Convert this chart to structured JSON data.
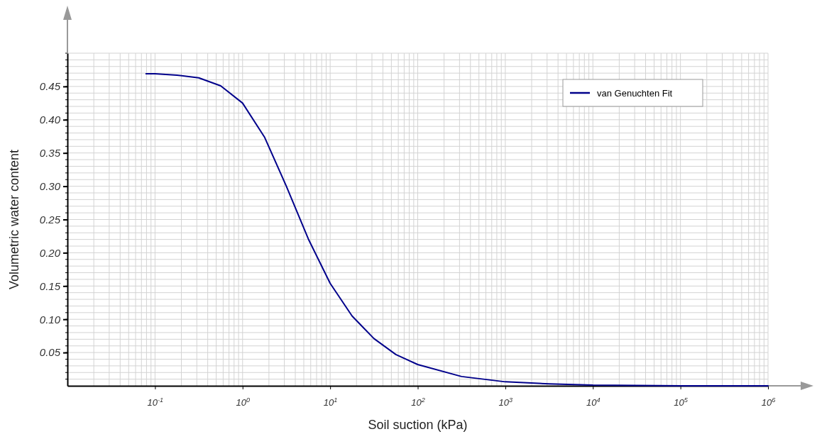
{
  "chart_data": {
    "type": "line",
    "xlabel": "Soil suction (kPa)",
    "ylabel": "Volumetric water content",
    "log": "x",
    "xlim": [
      0.01,
      1000000
    ],
    "ylim": [
      0,
      0.5
    ],
    "xticks": [
      {
        "value": 0.1,
        "label": "10$^{-1}$"
      },
      {
        "value": 1,
        "label": "10$^{0}$"
      },
      {
        "value": 10,
        "label": "10$^{1}$"
      },
      {
        "value": 100,
        "label": "10$^{2}$"
      },
      {
        "value": 1000,
        "label": "10$^{3}$"
      },
      {
        "value": 10000,
        "label": "10$^{4}$"
      },
      {
        "value": 100000,
        "label": "10$^{5}$"
      },
      {
        "value": 1000000,
        "label": "10$^{6}$"
      }
    ],
    "yticks": [
      {
        "value": 0.05,
        "label": "0.05"
      },
      {
        "value": 0.1,
        "label": "0.10"
      },
      {
        "value": 0.15,
        "label": "0.15"
      },
      {
        "value": 0.2,
        "label": "0.20"
      },
      {
        "value": 0.25,
        "label": "0.25"
      },
      {
        "value": 0.3,
        "label": "0.30"
      },
      {
        "value": 0.35,
        "label": "0.35"
      },
      {
        "value": 0.4,
        "label": "0.40"
      },
      {
        "value": 0.45,
        "label": "0.45"
      }
    ],
    "grid": true,
    "legend": "top right",
    "marker": "none",
    "line_style": "solid",
    "series": [
      {
        "name": "van Genuchten Fit",
        "color": "#00008b",
        "x": [
          0.079,
          0.1,
          0.178,
          0.316,
          0.562,
          1,
          1.778,
          3.162,
          5.623,
          10,
          17.78,
          31.62,
          56.23,
          100,
          316.2,
          1000,
          3162,
          10000,
          100000,
          1000000
        ],
        "values": [
          0.469,
          0.469,
          0.467,
          0.463,
          0.451,
          0.425,
          0.374,
          0.3,
          0.221,
          0.154,
          0.105,
          0.071,
          0.047,
          0.032,
          0.014,
          0.006,
          0.003,
          0.001,
          0.0,
          0.0
        ]
      }
    ]
  }
}
